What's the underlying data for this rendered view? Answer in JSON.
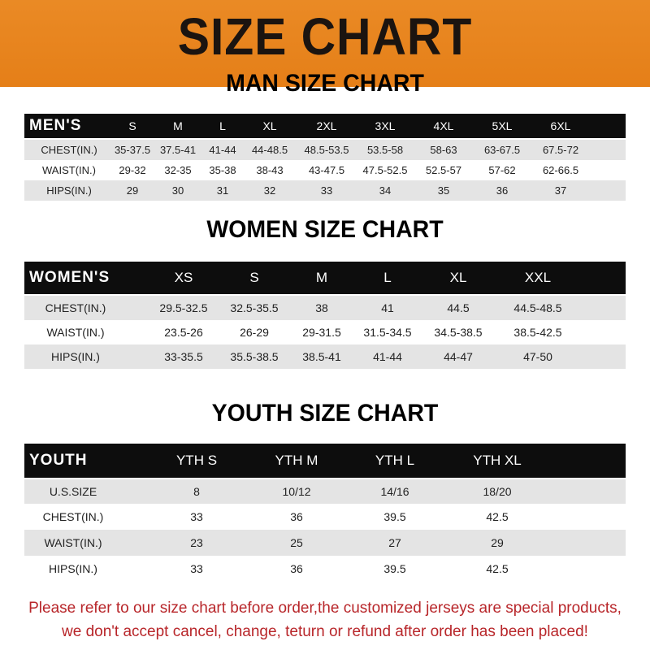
{
  "banner": {
    "title": "SIZE CHART",
    "color": "#e8831e"
  },
  "men": {
    "title": "MAN SIZE CHART",
    "header": [
      "MEN'S",
      "S",
      "M",
      "L",
      "XL",
      "2XL",
      "3XL",
      "4XL",
      "5XL",
      "6XL"
    ],
    "rows": [
      [
        "CHEST(IN.)",
        "35-37.5",
        "37.5-41",
        "41-44",
        "44-48.5",
        "48.5-53.5",
        "53.5-58",
        "58-63",
        "63-67.5",
        "67.5-72"
      ],
      [
        "WAIST(IN.)",
        "29-32",
        "32-35",
        "35-38",
        "38-43",
        "43-47.5",
        "47.5-52.5",
        "52.5-57",
        "57-62",
        "62-66.5"
      ],
      [
        "HIPS(IN.)",
        "29",
        "30",
        "31",
        "32",
        "33",
        "34",
        "35",
        "36",
        "37"
      ]
    ]
  },
  "women": {
    "title": "WOMEN SIZE CHART",
    "header": [
      "WOMEN'S",
      "XS",
      "S",
      "M",
      "L",
      "XL",
      "XXL"
    ],
    "rows": [
      [
        "CHEST(IN.)",
        "29.5-32.5",
        "32.5-35.5",
        "38",
        "41",
        "44.5",
        "44.5-48.5"
      ],
      [
        "WAIST(IN.)",
        "23.5-26",
        "26-29",
        "29-31.5",
        "31.5-34.5",
        "34.5-38.5",
        "38.5-42.5"
      ],
      [
        "HIPS(IN.)",
        "33-35.5",
        "35.5-38.5",
        "38.5-41",
        "41-44",
        "44-47",
        "47-50"
      ]
    ]
  },
  "youth": {
    "title": "YOUTH SIZE CHART",
    "header": [
      "YOUTH",
      "YTH S",
      "YTH M",
      "YTH L",
      "YTH XL"
    ],
    "rows": [
      [
        "U.S.SIZE",
        "8",
        "10/12",
        "14/16",
        "18/20"
      ],
      [
        "CHEST(IN.)",
        "33",
        "36",
        "39.5",
        "42.5"
      ],
      [
        "WAIST(IN.)",
        "23",
        "25",
        "27",
        "29"
      ],
      [
        "HIPS(IN.)",
        "33",
        "36",
        "39.5",
        "42.5"
      ]
    ]
  },
  "footer": {
    "line1": "Please refer to our size chart before order,the customized jerseys are special products,",
    "line2": "we don't accept cancel, change, teturn or refund after order has been placed!",
    "color": "#b8262a"
  }
}
